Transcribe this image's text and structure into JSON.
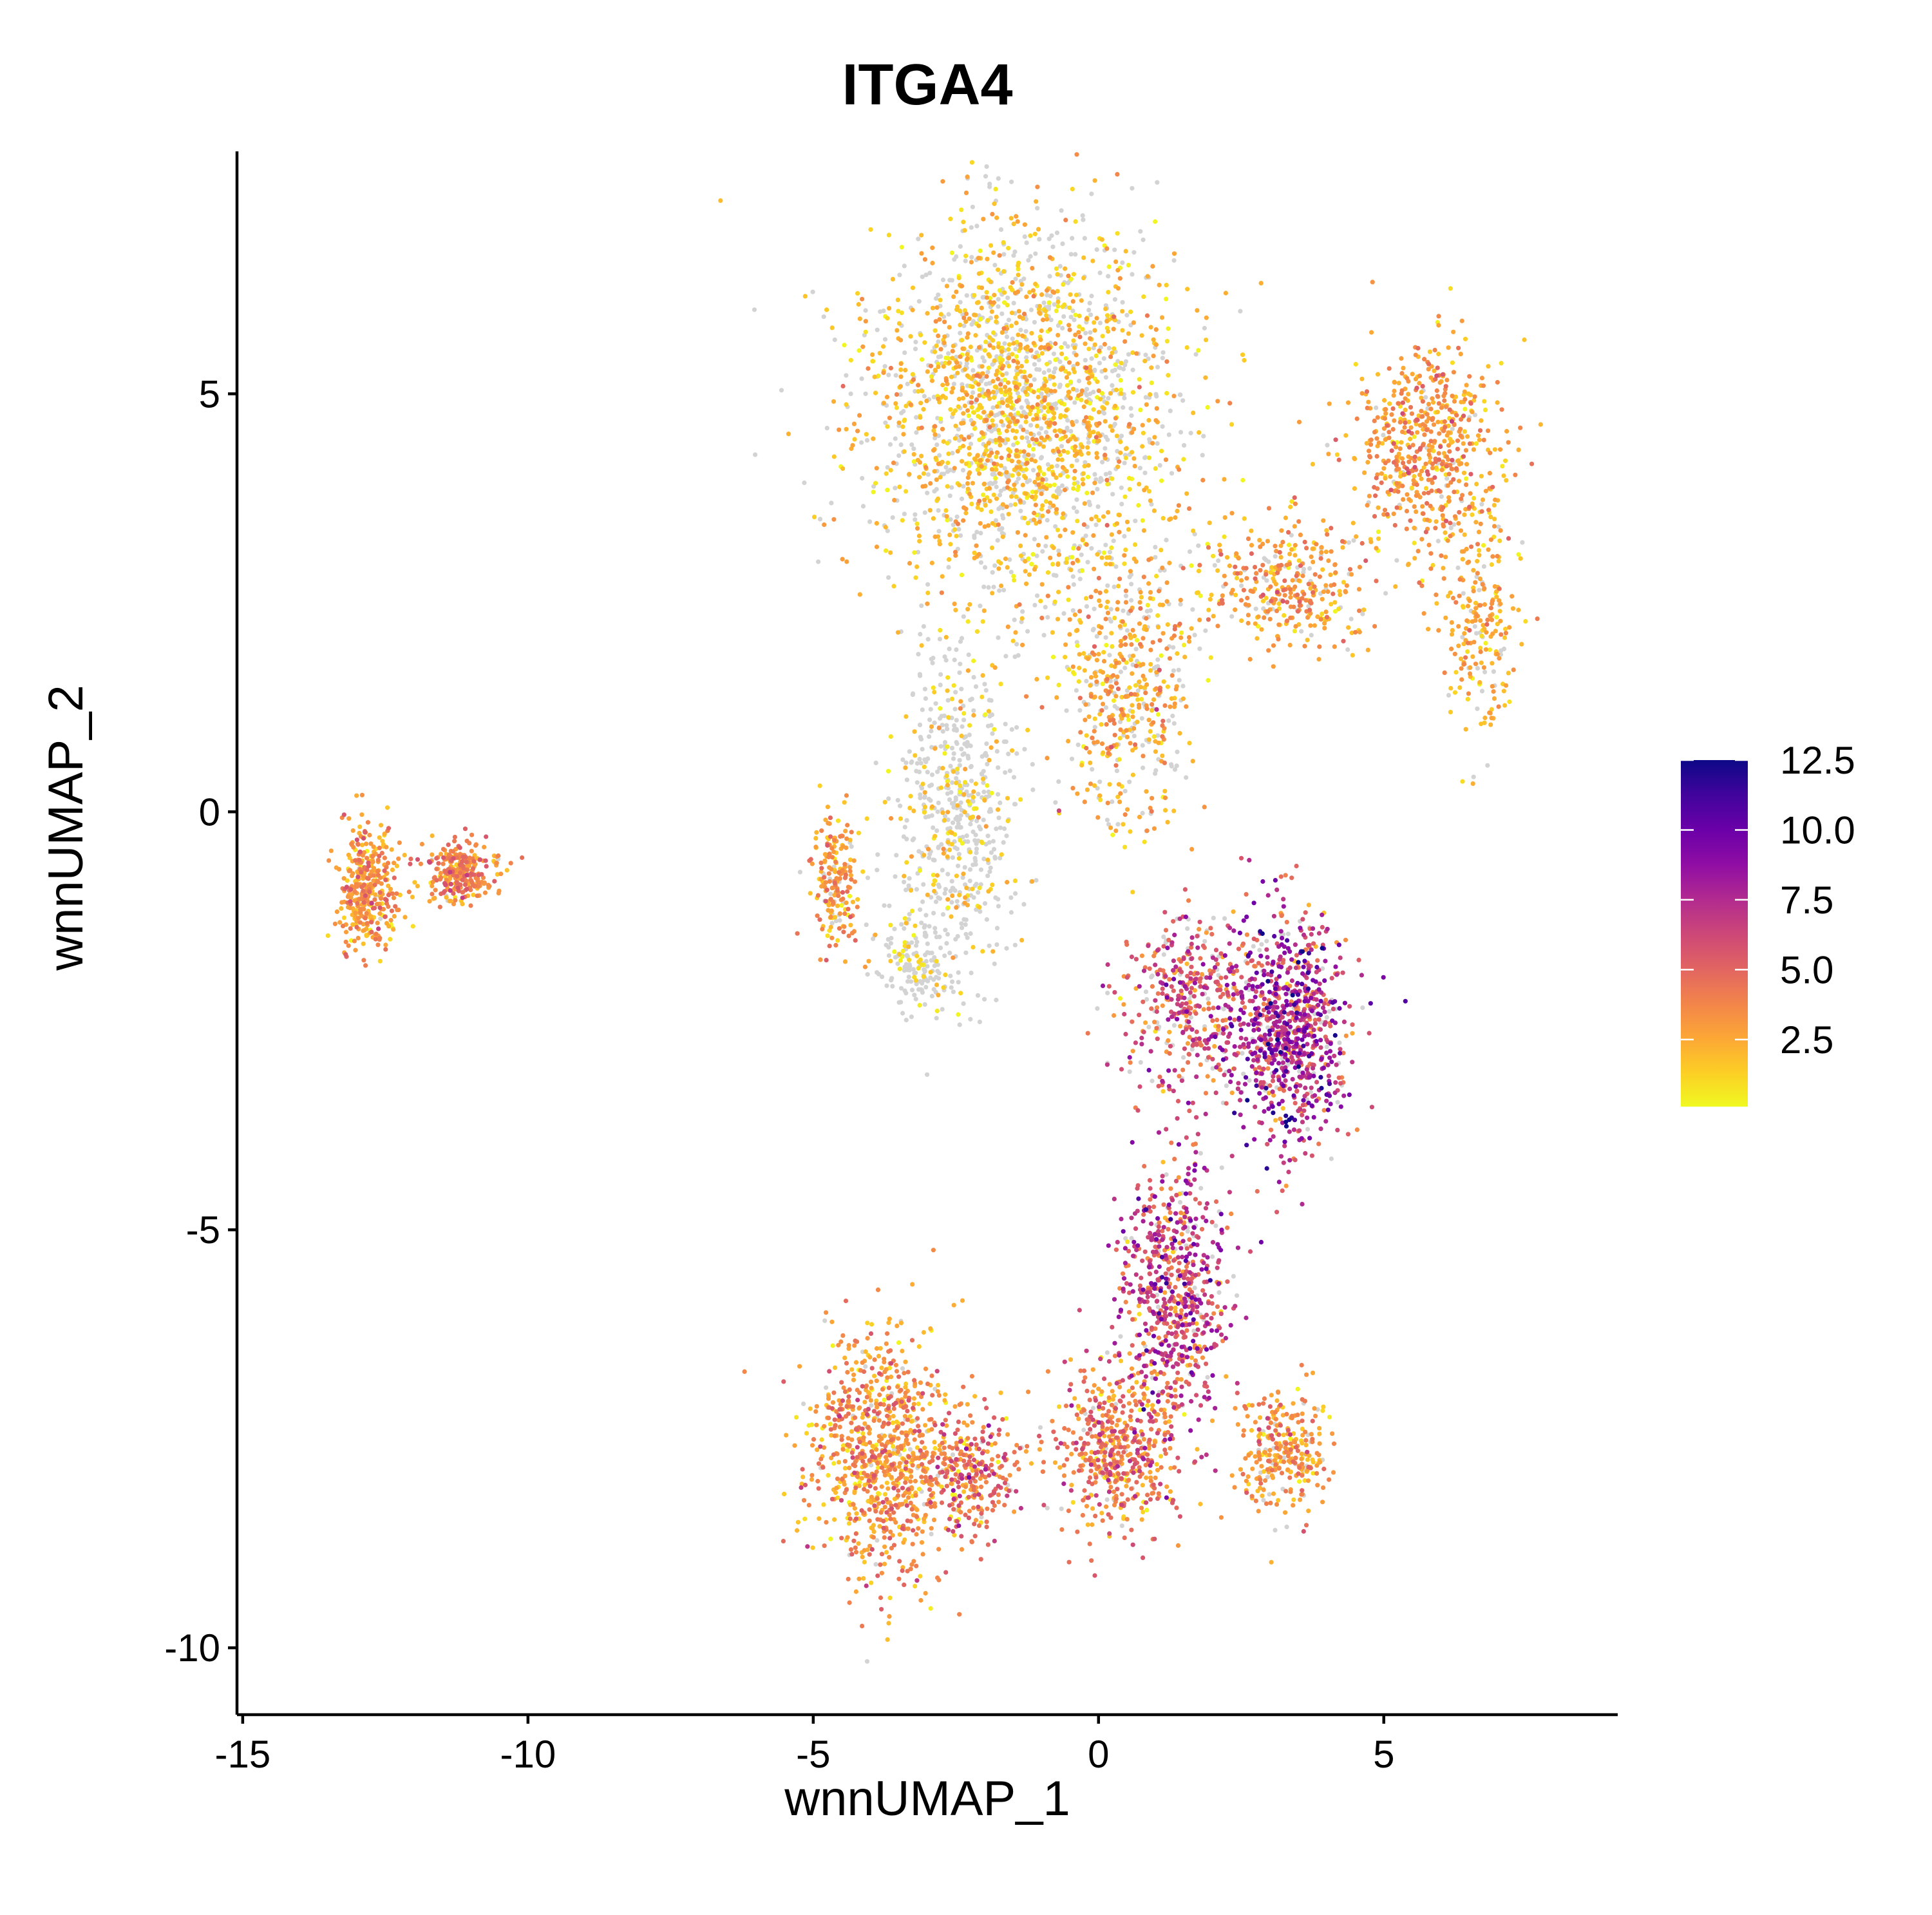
{
  "chart_data": {
    "type": "scatter",
    "title": "ITGA4",
    "xlabel": "wnnUMAP_1",
    "ylabel": "wnnUMAP_2",
    "xlim": [
      -15.1,
      9.1
    ],
    "ylim": [
      -10.8,
      7.9
    ],
    "x_ticks": [
      -15,
      -10,
      -5,
      0,
      5
    ],
    "x_tick_labels": [
      "-15",
      "-10",
      "-5",
      "0",
      "5"
    ],
    "y_ticks": [
      -10,
      -5,
      0,
      5
    ],
    "y_tick_labels": [
      "-10",
      "-5",
      "0",
      "5"
    ],
    "grid": false,
    "legend_position": "right",
    "color_scale": {
      "name": "plasma",
      "min": 0.1,
      "max": 12.5,
      "breaks": [
        2.5,
        5.0,
        7.5,
        10.0,
        12.5
      ],
      "break_labels": [
        "2.5",
        "5.0",
        "7.5",
        "10.0",
        "12.5"
      ],
      "colors": [
        "#F0F921",
        "#FCCE25",
        "#FCA636",
        "#F2844B",
        "#E16462",
        "#CC4778",
        "#B12A90",
        "#8F0DA4",
        "#6A00A8",
        "#41049D",
        "#0D0887"
      ],
      "na_color": "#D3D3D3"
    },
    "clusters": [
      {
        "center": [
          -1.3,
          4.8
        ],
        "spread": [
          2.3,
          1.9
        ],
        "n": 2200,
        "expr_mean": 1.8,
        "expr_sd": 1.0,
        "zero_frac": 0.35
      },
      {
        "center": [
          5.8,
          4.3
        ],
        "spread": [
          1.1,
          1.0
        ],
        "n": 600,
        "expr_mean": 3.0,
        "expr_sd": 1.2,
        "zero_frac": 0.05
      },
      {
        "center": [
          6.7,
          2.2
        ],
        "spread": [
          0.5,
          1.1
        ],
        "n": 220,
        "expr_mean": 2.3,
        "expr_sd": 1.0,
        "zero_frac": 0.15
      },
      {
        "center": [
          3.3,
          2.7
        ],
        "spread": [
          1.2,
          0.6
        ],
        "n": 350,
        "expr_mean": 2.8,
        "expr_sd": 1.2,
        "zero_frac": 0.15
      },
      {
        "center": [
          0.5,
          1.5
        ],
        "spread": [
          0.9,
          1.4
        ],
        "n": 500,
        "expr_mean": 2.5,
        "expr_sd": 1.2,
        "zero_frac": 0.3
      },
      {
        "center": [
          -2.5,
          0.0
        ],
        "spread": [
          0.9,
          1.6
        ],
        "n": 600,
        "expr_mean": 1.5,
        "expr_sd": 0.8,
        "zero_frac": 0.7
      },
      {
        "center": [
          -3.2,
          -1.8
        ],
        "spread": [
          0.5,
          0.5
        ],
        "n": 150,
        "expr_mean": 1.0,
        "expr_sd": 0.5,
        "zero_frac": 0.8
      },
      {
        "center": [
          -4.6,
          -0.8
        ],
        "spread": [
          0.35,
          0.7
        ],
        "n": 200,
        "expr_mean": 3.0,
        "expr_sd": 1.3,
        "zero_frac": 0.1
      },
      {
        "center": [
          3.3,
          -2.6
        ],
        "spread": [
          0.9,
          1.2
        ],
        "n": 900,
        "expr_mean": 7.0,
        "expr_sd": 2.3,
        "zero_frac": 0.08
      },
      {
        "center": [
          1.5,
          -2.3
        ],
        "spread": [
          0.9,
          0.9
        ],
        "n": 400,
        "expr_mean": 5.5,
        "expr_sd": 2.0,
        "zero_frac": 0.15
      },
      {
        "center": [
          1.3,
          -5.8
        ],
        "spread": [
          0.8,
          1.4
        ],
        "n": 700,
        "expr_mean": 6.0,
        "expr_sd": 2.2,
        "zero_frac": 0.08
      },
      {
        "center": [
          -3.8,
          -7.7
        ],
        "spread": [
          1.1,
          1.2
        ],
        "n": 900,
        "expr_mean": 3.2,
        "expr_sd": 1.4,
        "zero_frac": 0.04
      },
      {
        "center": [
          -2.2,
          -7.9
        ],
        "spread": [
          0.7,
          0.6
        ],
        "n": 250,
        "expr_mean": 4.5,
        "expr_sd": 1.8,
        "zero_frac": 0.05
      },
      {
        "center": [
          0.3,
          -7.6
        ],
        "spread": [
          0.9,
          0.8
        ],
        "n": 500,
        "expr_mean": 4.0,
        "expr_sd": 1.7,
        "zero_frac": 0.06
      },
      {
        "center": [
          3.2,
          -7.7
        ],
        "spread": [
          0.6,
          0.6
        ],
        "n": 300,
        "expr_mean": 3.0,
        "expr_sd": 1.2,
        "zero_frac": 0.1
      },
      {
        "center": [
          -12.8,
          -0.9
        ],
        "spread": [
          0.45,
          0.6
        ],
        "n": 380,
        "expr_mean": 3.0,
        "expr_sd": 1.3,
        "zero_frac": 0.02
      },
      {
        "center": [
          -11.2,
          -0.7
        ],
        "spread": [
          0.5,
          0.3
        ],
        "n": 280,
        "expr_mean": 3.5,
        "expr_sd": 1.4,
        "zero_frac": 0.02
      }
    ]
  }
}
